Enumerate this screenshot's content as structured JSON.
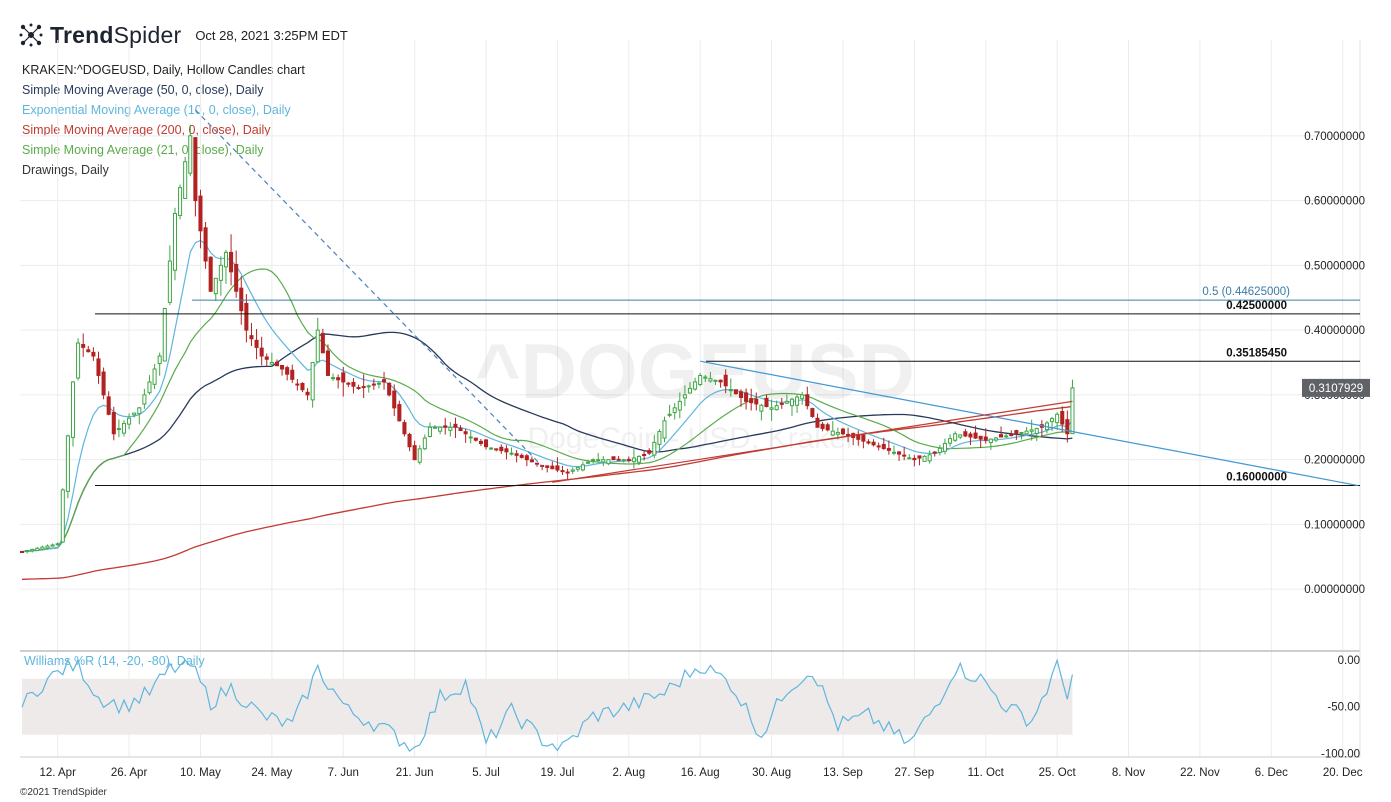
{
  "header": {
    "brand_bold": "Trend",
    "brand_light": "Spider",
    "timestamp": "Oct 28, 2021 3:25PM EDT"
  },
  "studies": [
    {
      "label": "KRAKEN:^DOGEUSD, Daily, Hollow Candles chart",
      "color": "#222222"
    },
    {
      "label": "Simple Moving Average (50, 0, close), Daily",
      "color": "#283a5b"
    },
    {
      "label": "Exponential Moving Average (10, 0, close), Daily",
      "color": "#5fb6dd"
    },
    {
      "label": "Simple Moving Average (200, 0, close), Daily",
      "color": "#c23b32"
    },
    {
      "label": "Simple Moving Average (21, 0, close), Daily",
      "color": "#5aab4c"
    },
    {
      "label": "Drawings, Daily",
      "color": "#333333"
    }
  ],
  "watermark": {
    "symbol": "^DOGEUSD",
    "name": "DogeCoin - USD, Kraken"
  },
  "footer": "©2021 TrendSpider",
  "chart_data": {
    "type": "candlestick",
    "symbol": "KRAKEN:^DOGEUSD",
    "interval": "Daily",
    "y_axis": {
      "ticks": [
        0.0,
        0.1,
        0.2,
        0.3,
        0.4,
        0.5,
        0.6,
        0.7
      ],
      "tick_labels": [
        "0.00000000",
        "0.10000000",
        "0.20000000",
        "0.30000000",
        "0.40000000",
        "0.50000000",
        "0.60000000",
        "0.70000000"
      ],
      "range": [
        -0.08,
        0.78
      ]
    },
    "x_axis": {
      "labels": [
        "12. Apr",
        "26. Apr",
        "10. May",
        "24. May",
        "7. Jun",
        "21. Jun",
        "5. Jul",
        "19. Jul",
        "2. Aug",
        "16. Aug",
        "30. Aug",
        "13. Sep",
        "27. Sep",
        "11. Oct",
        "25. Oct",
        "8. Nov",
        "22. Nov",
        "6. Dec",
        "20. Dec"
      ],
      "dates": [
        "2021-04-12",
        "2021-04-26",
        "2021-05-10",
        "2021-05-24",
        "2021-06-07",
        "2021-06-21",
        "2021-07-05",
        "2021-07-19",
        "2021-08-02",
        "2021-08-16",
        "2021-08-30",
        "2021-09-13",
        "2021-09-27",
        "2021-10-11",
        "2021-10-25",
        "2021-11-08",
        "2021-11-22",
        "2021-12-06",
        "2021-12-20"
      ],
      "range": [
        "2021-04-05",
        "2021-12-23"
      ]
    },
    "price_keypoints": [
      [
        "2021-04-05",
        0.058
      ],
      [
        "2021-04-12",
        0.07
      ],
      [
        "2021-04-15",
        0.32
      ],
      [
        "2021-04-16",
        0.38
      ],
      [
        "2021-04-19",
        0.36
      ],
      [
        "2021-04-23",
        0.24
      ],
      [
        "2021-04-28",
        0.28
      ],
      [
        "2021-05-02",
        0.36
      ],
      [
        "2021-05-05",
        0.58
      ],
      [
        "2021-05-08",
        0.7
      ],
      [
        "2021-05-09",
        0.6
      ],
      [
        "2021-05-12",
        0.46
      ],
      [
        "2021-05-15",
        0.52
      ],
      [
        "2021-05-19",
        0.4
      ],
      [
        "2021-05-22",
        0.36
      ],
      [
        "2021-05-26",
        0.34
      ],
      [
        "2021-05-31",
        0.3
      ],
      [
        "2021-06-02",
        0.4
      ],
      [
        "2021-06-04",
        0.33
      ],
      [
        "2021-06-10",
        0.31
      ],
      [
        "2021-06-15",
        0.32
      ],
      [
        "2021-06-21",
        0.2
      ],
      [
        "2021-06-24",
        0.25
      ],
      [
        "2021-06-29",
        0.25
      ],
      [
        "2021-07-05",
        0.22
      ],
      [
        "2021-07-10",
        0.21
      ],
      [
        "2021-07-16",
        0.19
      ],
      [
        "2021-07-21",
        0.18
      ],
      [
        "2021-07-26",
        0.2
      ],
      [
        "2021-08-02",
        0.2
      ],
      [
        "2021-08-06",
        0.21
      ],
      [
        "2021-08-09",
        0.26
      ],
      [
        "2021-08-13",
        0.3
      ],
      [
        "2021-08-16",
        0.33
      ],
      [
        "2021-08-20",
        0.32
      ],
      [
        "2021-08-25",
        0.29
      ],
      [
        "2021-08-30",
        0.28
      ],
      [
        "2021-09-05",
        0.3
      ],
      [
        "2021-09-08",
        0.25
      ],
      [
        "2021-09-13",
        0.24
      ],
      [
        "2021-09-20",
        0.22
      ],
      [
        "2021-09-27",
        0.2
      ],
      [
        "2021-10-01",
        0.21
      ],
      [
        "2021-10-05",
        0.24
      ],
      [
        "2021-10-11",
        0.23
      ],
      [
        "2021-10-17",
        0.24
      ],
      [
        "2021-10-22",
        0.25
      ],
      [
        "2021-10-25",
        0.27
      ],
      [
        "2021-10-27",
        0.24
      ],
      [
        "2021-10-28",
        0.3108
      ]
    ],
    "levels": [
      {
        "value": 0.425,
        "label": "0.42500000",
        "color": "#111111"
      },
      {
        "value": 0.3518545,
        "label": "0.35185450",
        "color": "#111111"
      },
      {
        "value": 0.16,
        "label": "0.16000000",
        "color": "#111111"
      },
      {
        "value": 0.44625,
        "label": "0.5 (0.44625000)",
        "color": "#3a7ca5"
      }
    ],
    "trendlines": [
      {
        "name": "descending-dashed",
        "from": [
          "2021-05-09",
          0.74
        ],
        "to": [
          "2021-07-16",
          0.19
        ],
        "color": "#4a7fc0",
        "dashed": true
      },
      {
        "name": "descending-blue",
        "from": [
          "2021-08-16",
          0.352
        ],
        "to": [
          "2021-12-23",
          0.16
        ],
        "color": "#3f98d6",
        "dashed": false
      },
      {
        "name": "ascending-support",
        "from": [
          "2021-07-18",
          0.165
        ],
        "to": [
          "2021-10-28",
          0.29
        ],
        "color": "#c23b32",
        "dashed": false
      }
    ],
    "last_price": {
      "value": 0.3107929,
      "label": "0.3107929"
    },
    "williams_r": {
      "label": "Williams %R (14, -20, -80), Daily",
      "ticks": [
        0,
        -50,
        -100
      ],
      "tick_labels": [
        "0.00",
        "-50.00",
        "-100.00"
      ],
      "band": [
        -20,
        -80
      ],
      "keypoints": [
        [
          "2021-04-05",
          -50
        ],
        [
          "2021-04-09",
          -25
        ],
        [
          "2021-04-13",
          -10
        ],
        [
          "2021-04-16",
          -5
        ],
        [
          "2021-04-20",
          -40
        ],
        [
          "2021-04-25",
          -50
        ],
        [
          "2021-04-30",
          -35
        ],
        [
          "2021-05-04",
          -10
        ],
        [
          "2021-05-08",
          -5
        ],
        [
          "2021-05-12",
          -45
        ],
        [
          "2021-05-16",
          -30
        ],
        [
          "2021-05-22",
          -60
        ],
        [
          "2021-05-28",
          -70
        ],
        [
          "2021-06-02",
          -10
        ],
        [
          "2021-06-08",
          -55
        ],
        [
          "2021-06-14",
          -70
        ],
        [
          "2021-06-21",
          -95
        ],
        [
          "2021-06-26",
          -40
        ],
        [
          "2021-07-01",
          -25
        ],
        [
          "2021-07-05",
          -90
        ],
        [
          "2021-07-10",
          -55
        ],
        [
          "2021-07-16",
          -85
        ],
        [
          "2021-07-20",
          -95
        ],
        [
          "2021-07-26",
          -60
        ],
        [
          "2021-08-02",
          -50
        ],
        [
          "2021-08-09",
          -35
        ],
        [
          "2021-08-16",
          -5
        ],
        [
          "2021-08-22",
          -25
        ],
        [
          "2021-08-28",
          -80
        ],
        [
          "2021-09-02",
          -30
        ],
        [
          "2021-09-07",
          -10
        ],
        [
          "2021-09-12",
          -70
        ],
        [
          "2021-09-18",
          -60
        ],
        [
          "2021-09-26",
          -90
        ],
        [
          "2021-10-01",
          -50
        ],
        [
          "2021-10-05",
          -8
        ],
        [
          "2021-10-10",
          -20
        ],
        [
          "2021-10-15",
          -50
        ],
        [
          "2021-10-20",
          -65
        ],
        [
          "2021-10-25",
          -8
        ],
        [
          "2021-10-27",
          -35
        ],
        [
          "2021-10-28",
          -15
        ]
      ]
    }
  }
}
